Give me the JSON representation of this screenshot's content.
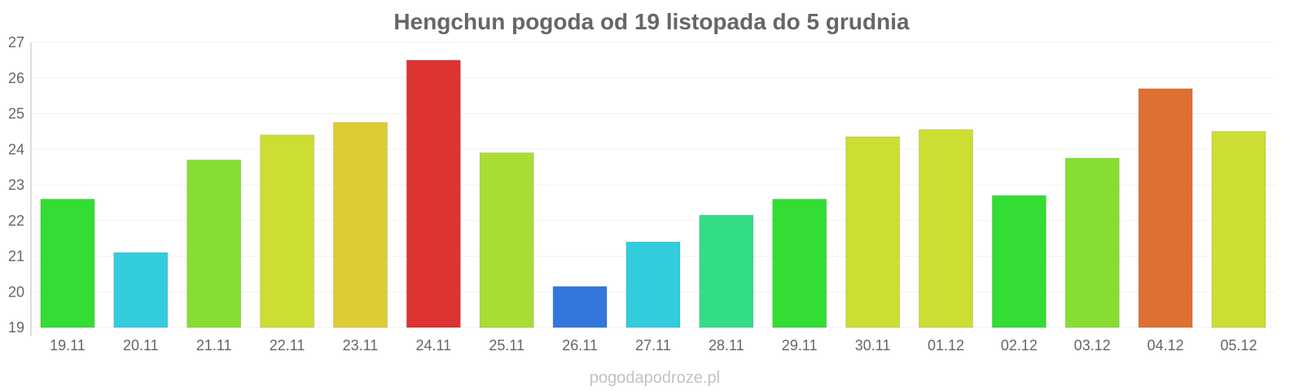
{
  "chart_data": {
    "type": "bar",
    "title": "Hengchun pogoda od 19 listopada do 5 grudnia",
    "categories": [
      "19.11",
      "20.11",
      "21.11",
      "22.11",
      "23.11",
      "24.11",
      "25.11",
      "26.11",
      "27.11",
      "28.11",
      "29.11",
      "30.11",
      "01.12",
      "02.12",
      "03.12",
      "04.12",
      "05.12"
    ],
    "values": [
      22.6,
      21.1,
      23.7,
      24.4,
      24.75,
      26.5,
      23.9,
      20.15,
      21.4,
      22.15,
      22.6,
      24.35,
      24.55,
      22.7,
      23.75,
      25.7,
      24.5
    ],
    "colors": [
      "#33dd33",
      "#33ccdd",
      "#88dd33",
      "#ccdd33",
      "#ddcc33",
      "#dd3333",
      "#aadd33",
      "#3377dd",
      "#33ccdd",
      "#33dd88",
      "#33dd33",
      "#ccdd33",
      "#ccdd33",
      "#33dd33",
      "#88dd33",
      "#dd7033",
      "#ccdd33"
    ],
    "ylim": [
      19,
      27
    ],
    "yticks": [
      19,
      20,
      21,
      22,
      23,
      24,
      25,
      26,
      27
    ],
    "grid": true,
    "legend": "none"
  },
  "credit": "pogodapodroze.pl"
}
